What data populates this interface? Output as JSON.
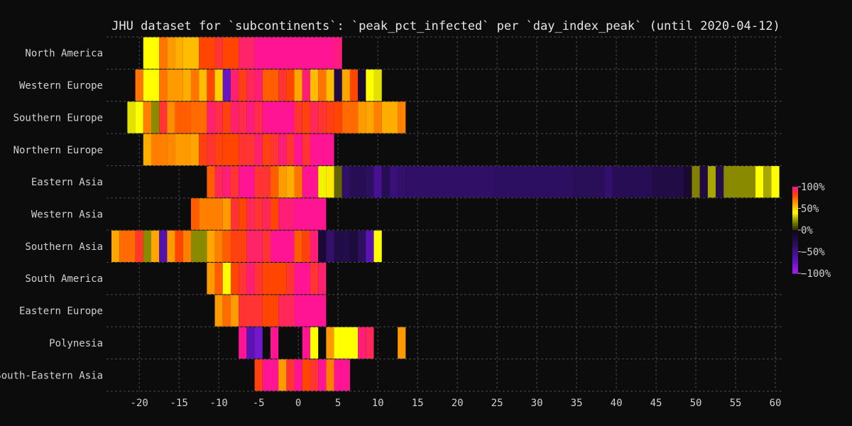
{
  "chart_data": {
    "type": "heatmap",
    "title": "JHU dataset for `subcontinents`: `peak_pct_infected` per `day_index_peak` (until 2020-04-12)",
    "xlabel": "",
    "ylabel": "",
    "xlim": [
      -23.5,
      60.8
    ],
    "x_ticks": [
      -20,
      -15,
      -10,
      -5,
      0,
      5,
      10,
      15,
      20,
      25,
      30,
      35,
      40,
      45,
      50,
      55,
      60
    ],
    "x_tick_labels": [
      "-20",
      "-15",
      "-10",
      "-5",
      "0",
      "5",
      "10",
      "15",
      "20",
      "25",
      "30",
      "35",
      "40",
      "45",
      "50",
      "55",
      "60"
    ],
    "grid": true,
    "color_scale": {
      "min": -100,
      "max": 100,
      "ticks": [
        100,
        50,
        0,
        -50,
        -100
      ],
      "tick_labels": [
        "100%",
        "50%",
        "0%",
        "−50%",
        "−100%"
      ],
      "negative_colors": [
        "#0f061c",
        "#2a0f5a",
        "#5512b0",
        "#a020f0"
      ],
      "positive_colors": [
        "#2a2a08",
        "#8a8a00",
        "#ffff00",
        "#ffa500",
        "#ff4500",
        "#ff1493"
      ]
    },
    "rows": [
      {
        "label": "North America",
        "cells": [
          [
            -19.5,
            -17.5,
            40
          ],
          [
            -17.5,
            -16.5,
            70
          ],
          [
            -16.5,
            -15.5,
            62
          ],
          [
            -15.5,
            -14.5,
            58
          ],
          [
            -14.5,
            -12.5,
            55
          ],
          [
            -12.5,
            -10.5,
            80
          ],
          [
            -10.5,
            -9.5,
            87
          ],
          [
            -9.5,
            -7.5,
            80
          ],
          [
            -7.5,
            -5.5,
            94
          ],
          [
            -5.5,
            4.5,
            100
          ],
          [
            4.5,
            5.5,
            97
          ]
        ]
      },
      {
        "label": "Western Europe",
        "cells": [
          [
            -20.5,
            -19.5,
            70
          ],
          [
            -19.5,
            -17.5,
            40
          ],
          [
            -17.5,
            -16.5,
            70
          ],
          [
            -16.5,
            -14.5,
            62
          ],
          [
            -14.5,
            -13.5,
            58
          ],
          [
            -13.5,
            -12.5,
            70
          ],
          [
            -12.5,
            -11.5,
            55
          ],
          [
            -11.5,
            -10.5,
            80
          ],
          [
            -10.5,
            -9.5,
            50
          ],
          [
            -9.5,
            -8.5,
            -75
          ],
          [
            -8.5,
            -7.5,
            95
          ],
          [
            -7.5,
            -6.5,
            83
          ],
          [
            -6.5,
            -5.5,
            92
          ],
          [
            -5.5,
            -4.5,
            96
          ],
          [
            -4.5,
            -2.5,
            75
          ],
          [
            -2.5,
            -1.5,
            87
          ],
          [
            -1.5,
            -0.5,
            80
          ],
          [
            -0.5,
            0.5,
            60
          ],
          [
            0.5,
            1.5,
            96
          ],
          [
            1.5,
            2.5,
            55
          ],
          [
            2.5,
            3.5,
            70
          ],
          [
            3.5,
            4.5,
            55
          ],
          [
            4.5,
            5.5,
            -20
          ],
          [
            5.5,
            6.5,
            60
          ],
          [
            6.5,
            7.5,
            80
          ],
          [
            7.5,
            8.5,
            -10
          ],
          [
            8.5,
            9.5,
            40
          ],
          [
            9.5,
            10.5,
            35
          ]
        ]
      },
      {
        "label": "Southern Europe",
        "cells": [
          [
            -21.5,
            -20.5,
            35
          ],
          [
            -20.5,
            -19.5,
            40
          ],
          [
            -19.5,
            -18.5,
            68
          ],
          [
            -18.5,
            -17.5,
            20
          ],
          [
            -17.5,
            -16.5,
            87
          ],
          [
            -16.5,
            -15.5,
            65
          ],
          [
            -15.5,
            -13.5,
            75
          ],
          [
            -13.5,
            -11.5,
            72
          ],
          [
            -11.5,
            -10.5,
            95
          ],
          [
            -10.5,
            -9.5,
            90
          ],
          [
            -9.5,
            -8.5,
            82
          ],
          [
            -8.5,
            -7.5,
            95
          ],
          [
            -7.5,
            -6.5,
            90
          ],
          [
            -6.5,
            -5.5,
            97
          ],
          [
            -5.5,
            -4.5,
            90
          ],
          [
            -4.5,
            -0.5,
            100
          ],
          [
            -0.5,
            0.5,
            87
          ],
          [
            0.5,
            1.5,
            82
          ],
          [
            1.5,
            2.5,
            92
          ],
          [
            2.5,
            3.5,
            87
          ],
          [
            3.5,
            4.5,
            83
          ],
          [
            4.5,
            5.5,
            80
          ],
          [
            5.5,
            7.5,
            72
          ],
          [
            7.5,
            8.5,
            62
          ],
          [
            8.5,
            9.5,
            60
          ],
          [
            9.5,
            10.5,
            68
          ],
          [
            10.5,
            12.5,
            58
          ],
          [
            12.5,
            13.5,
            67
          ]
        ]
      },
      {
        "label": "Northern Europe",
        "cells": [
          [
            -19.5,
            -18.5,
            58
          ],
          [
            -18.5,
            -16.5,
            68
          ],
          [
            -16.5,
            -15.5,
            66
          ],
          [
            -15.5,
            -13.5,
            62
          ],
          [
            -13.5,
            -12.5,
            60
          ],
          [
            -12.5,
            -11.5,
            82
          ],
          [
            -11.5,
            -10.5,
            87
          ],
          [
            -10.5,
            -9.5,
            82
          ],
          [
            -9.5,
            -7.5,
            80
          ],
          [
            -7.5,
            -5.5,
            87
          ],
          [
            -5.5,
            -4.5,
            95
          ],
          [
            -4.5,
            -3.5,
            82
          ],
          [
            -3.5,
            -2.5,
            87
          ],
          [
            -2.5,
            -1.5,
            96
          ],
          [
            -1.5,
            -0.5,
            87
          ],
          [
            -0.5,
            0.5,
            100
          ],
          [
            0.5,
            1.5,
            87
          ],
          [
            1.5,
            4.5,
            100
          ]
        ]
      },
      {
        "label": "Eastern Asia",
        "cells": [
          [
            -11.5,
            -10.5,
            75
          ],
          [
            -10.5,
            -9.5,
            92
          ],
          [
            -9.5,
            -8.5,
            96
          ],
          [
            -8.5,
            -7.5,
            87
          ],
          [
            -7.5,
            -5.5,
            100
          ],
          [
            -5.5,
            -3.5,
            87
          ],
          [
            -3.5,
            -2.5,
            75
          ],
          [
            -2.5,
            -1.5,
            62
          ],
          [
            -1.5,
            -0.5,
            58
          ],
          [
            -0.5,
            0.5,
            70
          ],
          [
            0.5,
            2.5,
            100
          ],
          [
            2.5,
            3.5,
            38
          ],
          [
            3.5,
            4.5,
            45
          ],
          [
            4.5,
            5.5,
            12
          ],
          [
            5.5,
            6.5,
            -38
          ],
          [
            6.5,
            8.5,
            -30
          ],
          [
            8.5,
            9.5,
            -35
          ],
          [
            9.5,
            10.5,
            -55
          ],
          [
            10.5,
            11.5,
            -30
          ],
          [
            11.5,
            12.5,
            -45
          ],
          [
            12.5,
            13.5,
            -40
          ],
          [
            13.5,
            24.5,
            -38
          ],
          [
            24.5,
            34.5,
            -36
          ],
          [
            34.5,
            38.5,
            -32
          ],
          [
            38.5,
            39.5,
            -40
          ],
          [
            39.5,
            44.5,
            -30
          ],
          [
            44.5,
            48.5,
            -22
          ],
          [
            48.5,
            49.5,
            -10
          ],
          [
            49.5,
            50.5,
            18
          ],
          [
            50.5,
            51.5,
            -20
          ],
          [
            51.5,
            52.5,
            25
          ],
          [
            52.5,
            53.5,
            -25
          ],
          [
            53.5,
            57.5,
            20
          ],
          [
            57.5,
            58.5,
            40
          ],
          [
            58.5,
            59.5,
            25
          ],
          [
            59.5,
            60.5,
            40
          ]
        ]
      },
      {
        "label": "Western Asia",
        "cells": [
          [
            -13.5,
            -12.5,
            75
          ],
          [
            -12.5,
            -9.5,
            68
          ],
          [
            -9.5,
            -8.5,
            62
          ],
          [
            -8.5,
            -7.5,
            87
          ],
          [
            -7.5,
            -6.5,
            80
          ],
          [
            -6.5,
            -5.5,
            92
          ],
          [
            -5.5,
            -4.5,
            87
          ],
          [
            -4.5,
            -3.5,
            92
          ],
          [
            -3.5,
            -2.5,
            80
          ],
          [
            -2.5,
            -0.5,
            96
          ],
          [
            -0.5,
            3.5,
            100
          ]
        ]
      },
      {
        "label": "Southern Asia",
        "cells": [
          [
            -23.5,
            -22.5,
            60
          ],
          [
            -22.5,
            -20.5,
            72
          ],
          [
            -20.5,
            -19.5,
            85
          ],
          [
            -19.5,
            -18.5,
            20
          ],
          [
            -18.5,
            -17.5,
            60
          ],
          [
            -17.5,
            -16.5,
            -65
          ],
          [
            -16.5,
            -15.5,
            62
          ],
          [
            -15.5,
            -14.5,
            80
          ],
          [
            -14.5,
            -13.5,
            68
          ],
          [
            -13.5,
            -11.5,
            20
          ],
          [
            -11.5,
            -10.5,
            60
          ],
          [
            -10.5,
            -9.5,
            68
          ],
          [
            -9.5,
            -8.5,
            75
          ],
          [
            -8.5,
            -6.5,
            82
          ],
          [
            -6.5,
            -4.5,
            94
          ],
          [
            -4.5,
            -3.5,
            87
          ],
          [
            -3.5,
            -0.5,
            100
          ],
          [
            -0.5,
            0.5,
            75
          ],
          [
            0.5,
            1.5,
            82
          ],
          [
            1.5,
            2.5,
            96
          ],
          [
            2.5,
            3.5,
            -15
          ],
          [
            3.5,
            4.5,
            -40
          ],
          [
            4.5,
            5.5,
            -22
          ],
          [
            5.5,
            6.5,
            -25
          ],
          [
            6.5,
            7.5,
            -18
          ],
          [
            7.5,
            8.5,
            -35
          ],
          [
            8.5,
            9.5,
            -70
          ],
          [
            9.5,
            10.5,
            40
          ]
        ]
      },
      {
        "label": "South America",
        "cells": [
          [
            -11.5,
            -10.5,
            62
          ],
          [
            -10.5,
            -9.5,
            75
          ],
          [
            -9.5,
            -8.5,
            40
          ],
          [
            -8.5,
            -7.5,
            80
          ],
          [
            -7.5,
            -6.5,
            87
          ],
          [
            -6.5,
            -5.5,
            96
          ],
          [
            -5.5,
            -4.5,
            87
          ],
          [
            -4.5,
            -1.5,
            80
          ],
          [
            -1.5,
            -0.5,
            87
          ],
          [
            -0.5,
            1.5,
            100
          ],
          [
            1.5,
            2.5,
            87
          ],
          [
            2.5,
            3.5,
            95
          ]
        ]
      },
      {
        "label": "Eastern Europe",
        "cells": [
          [
            -10.5,
            -9.5,
            62
          ],
          [
            -9.5,
            -8.5,
            72
          ],
          [
            -8.5,
            -7.5,
            62
          ],
          [
            -7.5,
            -4.5,
            87
          ],
          [
            -4.5,
            -2.5,
            80
          ],
          [
            -2.5,
            -0.5,
            92
          ],
          [
            -0.5,
            3.5,
            100
          ]
        ]
      },
      {
        "label": "Polynesia",
        "cells": [
          [
            -7.5,
            -6.5,
            100
          ],
          [
            -6.5,
            -5.5,
            -70
          ],
          [
            -5.5,
            -4.5,
            -80
          ],
          [
            -4.5,
            -3.5,
            0
          ],
          [
            -3.5,
            -2.5,
            100
          ],
          [
            -2.5,
            0.5,
            0
          ],
          [
            0.5,
            1.5,
            100
          ],
          [
            1.5,
            2.5,
            40
          ],
          [
            2.5,
            3.5,
            0
          ],
          [
            3.5,
            4.5,
            62
          ],
          [
            4.5,
            7.5,
            40
          ],
          [
            7.5,
            8.5,
            96
          ],
          [
            8.5,
            9.5,
            92
          ],
          [
            12.5,
            13.5,
            62
          ]
        ]
      },
      {
        "label": "South-Eastern Asia",
        "cells": [
          [
            -5.5,
            -4.5,
            82
          ],
          [
            -4.5,
            -2.5,
            100
          ],
          [
            -2.5,
            -1.5,
            62
          ],
          [
            -1.5,
            -0.5,
            87
          ],
          [
            -0.5,
            0.5,
            100
          ],
          [
            0.5,
            1.5,
            80
          ],
          [
            1.5,
            2.5,
            87
          ],
          [
            2.5,
            3.5,
            100
          ],
          [
            3.5,
            4.5,
            68
          ],
          [
            4.5,
            6.5,
            100
          ]
        ]
      }
    ]
  }
}
